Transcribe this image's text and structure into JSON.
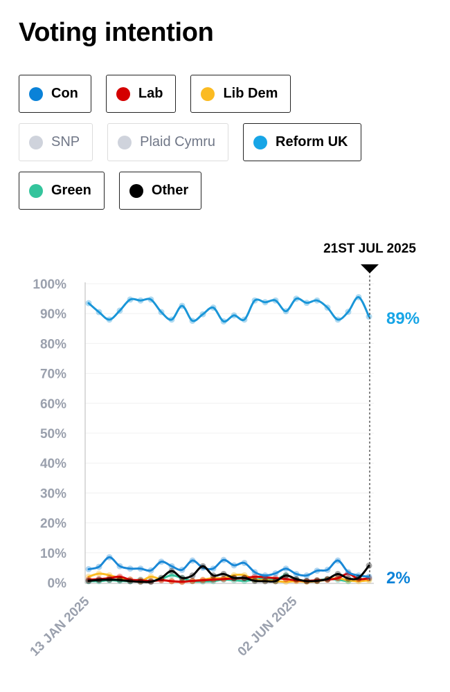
{
  "title": "Voting intention",
  "legend": [
    {
      "label": "Con",
      "color": "#0a82d8",
      "active": true
    },
    {
      "label": "Lab",
      "color": "#d40000",
      "active": true
    },
    {
      "label": "Lib Dem",
      "color": "#fbbb22",
      "active": true
    },
    {
      "label": "SNP",
      "color": "#cfd3dc",
      "active": false
    },
    {
      "label": "Plaid Cymru",
      "color": "#cfd3dc",
      "active": false
    },
    {
      "label": "Reform UK",
      "color": "#17a5e6",
      "active": true
    },
    {
      "label": "Green",
      "color": "#34c49c",
      "active": true
    },
    {
      "label": "Other",
      "color": "#000000",
      "active": true
    }
  ],
  "chart_data": {
    "type": "line",
    "title": "",
    "xlabel": "",
    "ylabel": "",
    "ylim": [
      0,
      100
    ],
    "y_ticks": [
      "0%",
      "10%",
      "20%",
      "30%",
      "40%",
      "50%",
      "60%",
      "70%",
      "80%",
      "90%",
      "100%"
    ],
    "x_tick_labels": [
      {
        "label": "13 JAN 2025",
        "date": "2025-01-13"
      },
      {
        "label": "02 JUN 2025",
        "date": "2025-06-02"
      }
    ],
    "grid": true,
    "x_start": "2025-01-13",
    "x_interval": "weekly",
    "x_end": "2025-07-21",
    "marker": {
      "label": "21ST JUL 2025",
      "date": "2025-07-21"
    },
    "end_labels": [
      {
        "series": "Reform UK",
        "text": "89%"
      },
      {
        "series": "Con",
        "text": "2%"
      }
    ],
    "series": [
      {
        "name": "Reform UK",
        "color": "#1a96d8",
        "values": [
          93.5,
          90.5,
          88,
          91,
          94.7,
          94.4,
          94.7,
          90.5,
          88,
          92.6,
          87.6,
          89.8,
          92,
          87.4,
          89.4,
          88,
          94.4,
          93.8,
          94.4,
          90.8,
          95,
          93.6,
          94.4,
          92,
          88,
          90.6,
          95.5,
          89
        ]
      },
      {
        "name": "Con",
        "color": "#1a88d6",
        "values": [
          4.5,
          5.3,
          8.5,
          5.5,
          4.7,
          4.7,
          4.1,
          7,
          5.5,
          4.3,
          7.4,
          5,
          4.7,
          7.6,
          5.8,
          6.6,
          3.5,
          2.4,
          3.1,
          4.7,
          2.9,
          2.4,
          4,
          4.3,
          7.4,
          3.5,
          2.4,
          2
        ]
      },
      {
        "name": "Lab",
        "color": "#d40000",
        "values": [
          1,
          1.2,
          1.5,
          2,
          1,
          0.8,
          0.5,
          0.8,
          0.5,
          0.3,
          0.6,
          0.8,
          1,
          1.2,
          1.4,
          1.5,
          2,
          1.8,
          1.5,
          1.2,
          0.8,
          0.6,
          0.8,
          1,
          1.5,
          3,
          1.2,
          1.5
        ]
      },
      {
        "name": "Lib Dem",
        "color": "#fbbb22",
        "values": [
          2,
          3,
          2.5,
          1.5,
          1,
          0.5,
          2,
          1,
          0.5,
          0.3,
          0.6,
          1,
          1.5,
          1.5,
          2.5,
          2.5,
          1,
          0.8,
          0.5,
          0.3,
          0.5,
          0.3,
          0.5,
          1,
          1.5,
          0.8,
          0.5,
          0.8
        ]
      },
      {
        "name": "Green",
        "color": "#34c49c",
        "values": [
          0.5,
          0.5,
          0.8,
          0.6,
          0.5,
          1,
          0.5,
          1.2,
          2.5,
          1.5,
          0.5,
          0.4,
          0.5,
          1,
          0.8,
          0.6,
          1,
          1.5,
          1,
          2.5,
          1,
          0.6,
          0.8,
          1.2,
          1,
          0.5,
          1,
          1.2
        ]
      },
      {
        "name": "Other",
        "color": "#000000",
        "values": [
          0.6,
          0.9,
          1,
          0.9,
          0.5,
          0.3,
          0.3,
          1.6,
          3.9,
          1.6,
          2.4,
          5.5,
          2.4,
          2.9,
          1.6,
          1.6,
          0.6,
          0.5,
          0.5,
          2.4,
          1.2,
          0.5,
          0.6,
          1.2,
          2.9,
          1.4,
          1.6,
          5.7
        ]
      }
    ]
  }
}
